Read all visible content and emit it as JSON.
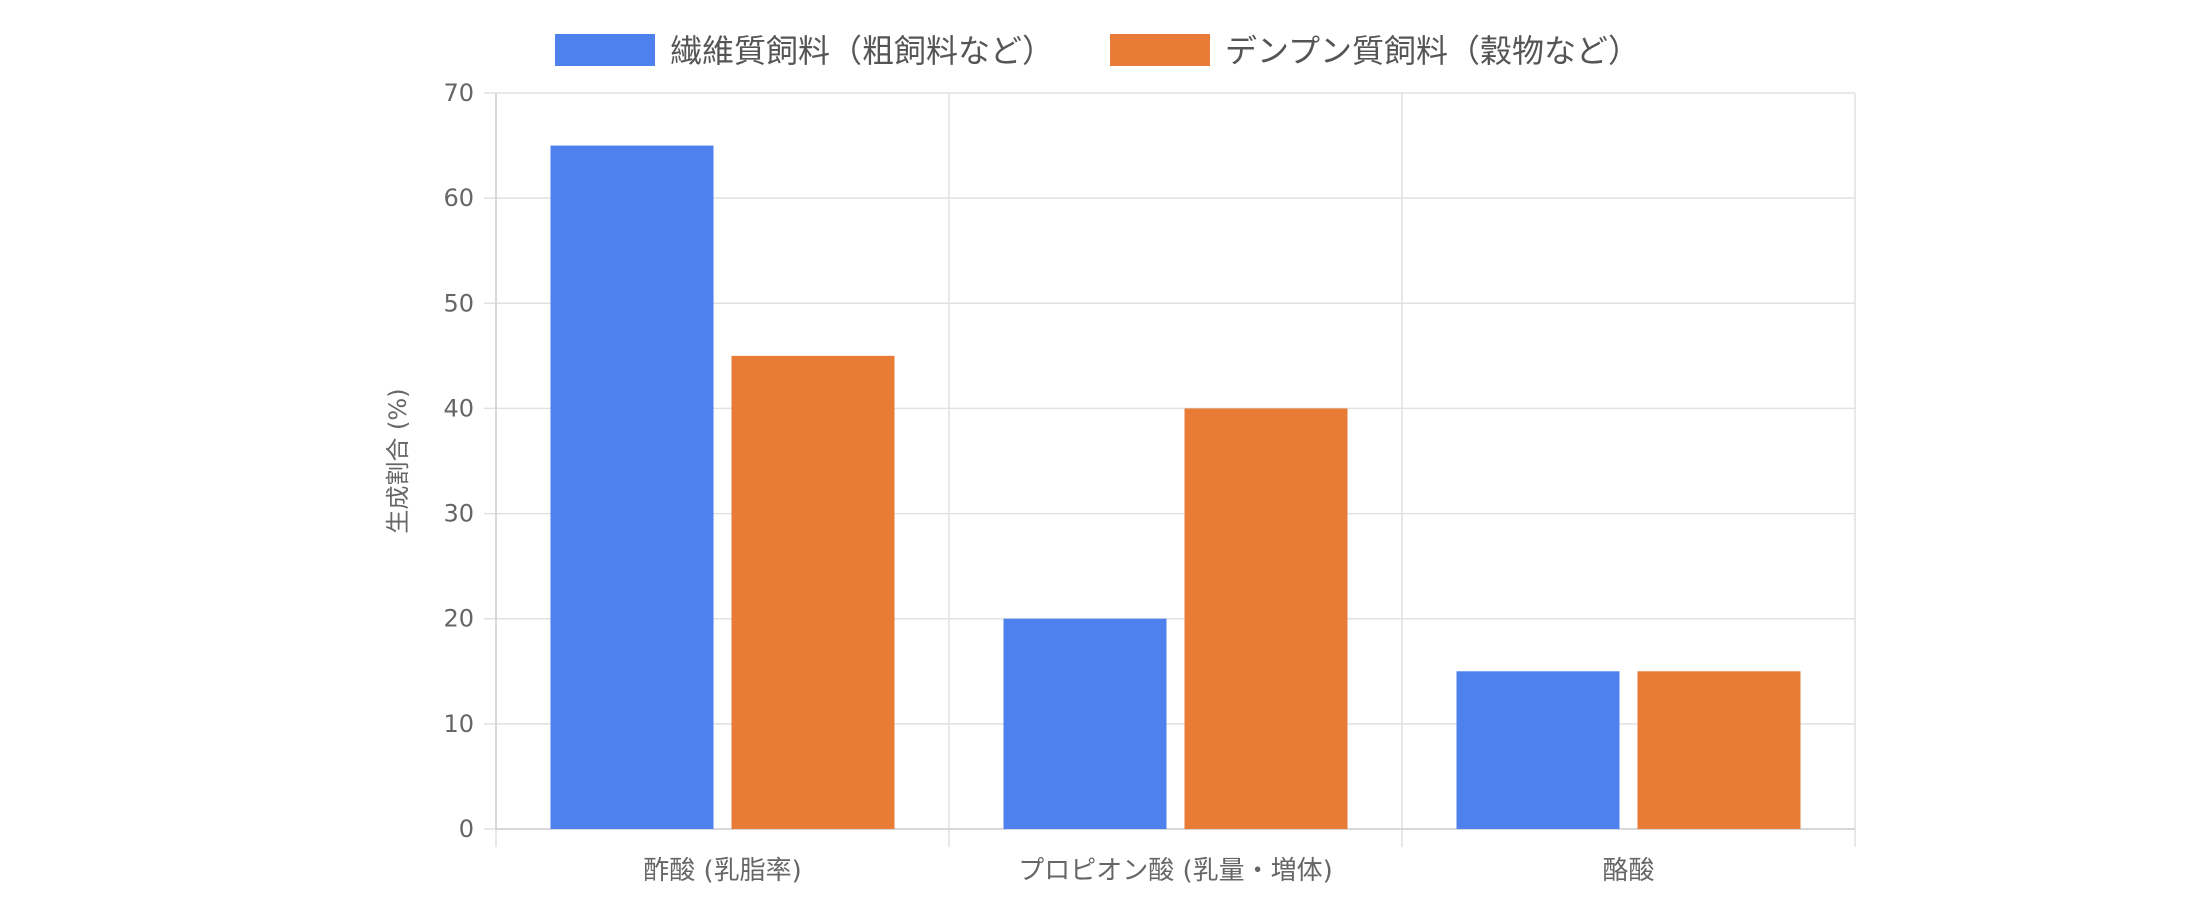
{
  "chart_data": {
    "type": "bar",
    "categories": [
      "酢酸 (乳脂率)",
      "プロピオン酸 (乳量・増体)",
      "酪酸"
    ],
    "series": [
      {
        "name": "繊維質飼料（粗飼料など）",
        "values": [
          65,
          20,
          15
        ],
        "color": "#4e81ee"
      },
      {
        "name": "デンプン質飼料（穀物など）",
        "values": [
          45,
          40,
          15
        ],
        "color": "#e87b35"
      }
    ],
    "ylabel": "生成割合 (%)",
    "xlabel": "",
    "ylim": [
      0,
      70
    ],
    "yticks": [
      0,
      10,
      20,
      30,
      40,
      50,
      60,
      70
    ],
    "grid": true,
    "legend_position": "top"
  }
}
